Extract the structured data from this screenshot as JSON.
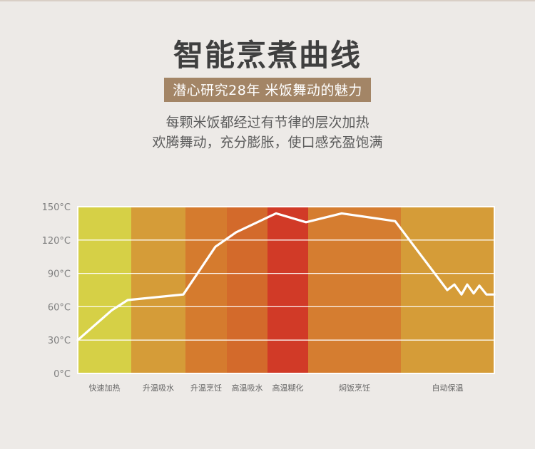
{
  "header": {
    "title": "智能烹煮曲线",
    "subtitle": "潜心研究28年  米饭舞动的魅力",
    "desc_line1": "每颗米饭都经过有节律的层次加热",
    "desc_line2": "欢腾舞动，充分膨胀，使口感充盈饱满"
  },
  "chart_data": {
    "type": "line",
    "title": "",
    "xlabel": "",
    "ylabel": "",
    "ylim": [
      0,
      150
    ],
    "yticks": [
      {
        "value": 150,
        "label": "150°C"
      },
      {
        "value": 120,
        "label": "120°C"
      },
      {
        "value": 90,
        "label": "90°C"
      },
      {
        "value": 60,
        "label": "60°C"
      },
      {
        "value": 30,
        "label": "30°C"
      },
      {
        "value": 0,
        "label": "0°C"
      }
    ],
    "grid": true,
    "stages": [
      {
        "label": "快速加热",
        "start": 0,
        "end": 75,
        "color": "#d6d046"
      },
      {
        "label": "升温吸水",
        "start": 75,
        "end": 151,
        "color": "#d59c38"
      },
      {
        "label": "升温烹饪",
        "start": 151,
        "end": 209,
        "color": "#d57b2e"
      },
      {
        "label": "高温吸水",
        "start": 209,
        "end": 266,
        "color": "#d36a2b"
      },
      {
        "label": "高温糊化",
        "start": 266,
        "end": 323,
        "color": "#d13a27"
      },
      {
        "label": "焖饭烹饪",
        "start": 323,
        "end": 453,
        "color": "#d57d30"
      },
      {
        "label": "自动保温",
        "start": 453,
        "end": 584,
        "color": "#d59c38"
      }
    ],
    "series": [
      {
        "color": "#ffffff",
        "x": [
          0,
          48,
          70,
          148,
          193,
          222,
          278,
          320,
          370,
          445,
          518,
          528,
          538,
          546,
          555,
          563,
          573,
          584
        ],
        "y": [
          30,
          57,
          66,
          71,
          114,
          127,
          144,
          136,
          144,
          137,
          75,
          80,
          71,
          80,
          72,
          79,
          71,
          71
        ]
      }
    ]
  }
}
